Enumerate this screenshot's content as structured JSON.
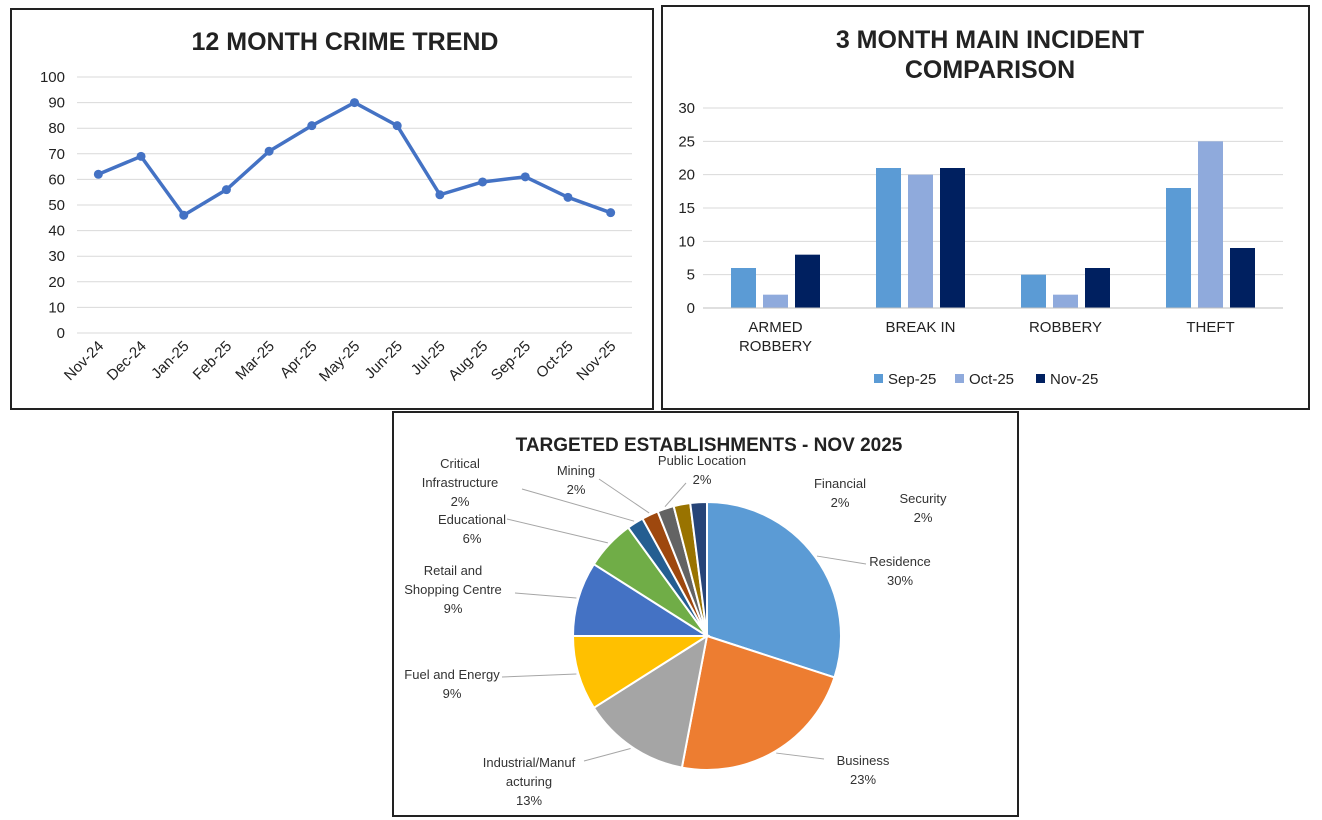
{
  "chart_data": [
    {
      "type": "line",
      "title": "12 MONTH CRIME TREND",
      "categories": [
        "Nov-24",
        "Dec-24",
        "Jan-25",
        "Feb-25",
        "Mar-25",
        "Apr-25",
        "May-25",
        "Jun-25",
        "Jul-25",
        "Aug-25",
        "Sep-25",
        "Oct-25",
        "Nov-25"
      ],
      "values": [
        62,
        69,
        46,
        56,
        71,
        81,
        90,
        81,
        54,
        59,
        61,
        53,
        47
      ],
      "ylim": [
        0,
        100
      ],
      "yticks": [
        "0",
        "10",
        "20",
        "30",
        "40",
        "50",
        "60",
        "70",
        "80",
        "90",
        "100"
      ],
      "grid": true,
      "color": "#4472C4"
    },
    {
      "type": "bar",
      "title_lines": [
        "3 MONTH MAIN INCIDENT",
        "COMPARISON"
      ],
      "categories": [
        [
          "ARMED",
          "ROBBERY"
        ],
        [
          "BREAK IN"
        ],
        [
          "ROBBERY"
        ],
        [
          "THEFT"
        ]
      ],
      "series": [
        {
          "name": "Sep-25",
          "color": "#5B9BD5",
          "values": [
            6,
            21,
            5,
            18
          ]
        },
        {
          "name": "Oct-25",
          "color": "#8FAADC",
          "values": [
            2,
            20,
            2,
            25
          ]
        },
        {
          "name": "Nov-25",
          "color": "#002060",
          "values": [
            8,
            21,
            6,
            9
          ]
        }
      ],
      "ylim": [
        0,
        30
      ],
      "yticks": [
        "0",
        "5",
        "10",
        "15",
        "20",
        "25",
        "30"
      ],
      "grid": true,
      "legend": "bottom"
    },
    {
      "type": "pie",
      "title": "TARGETED ESTABLISHMENTS - NOV 2025",
      "slices": [
        {
          "label": [
            "Residence"
          ],
          "pct": "30%",
          "value": 30,
          "color": "#5B9BD5"
        },
        {
          "label": [
            "Business"
          ],
          "pct": "23%",
          "value": 23,
          "color": "#ED7D31"
        },
        {
          "label": [
            "Industrial/Manuf",
            "acturing"
          ],
          "pct": "13%",
          "value": 13,
          "color": "#A5A5A5"
        },
        {
          "label": [
            "Fuel and Energy"
          ],
          "pct": "9%",
          "value": 9,
          "color": "#FFC000"
        },
        {
          "label": [
            "Retail and",
            "Shopping Centre"
          ],
          "pct": "9%",
          "value": 9,
          "color": "#4472C4"
        },
        {
          "label": [
            "Educational"
          ],
          "pct": "6%",
          "value": 6,
          "color": "#70AD47"
        },
        {
          "label": [
            "Critical",
            "Infrastructure"
          ],
          "pct": "2%",
          "value": 2,
          "color": "#255E91"
        },
        {
          "label": [
            "Mining"
          ],
          "pct": "2%",
          "value": 2,
          "color": "#9E480E"
        },
        {
          "label": [
            "Public Location"
          ],
          "pct": "2%",
          "value": 2,
          "color": "#636363"
        },
        {
          "label": [
            "Financial"
          ],
          "pct": "2%",
          "value": 2,
          "color": "#997300"
        },
        {
          "label": [
            "Security"
          ],
          "pct": "2%",
          "value": 2,
          "color": "#264478"
        }
      ]
    }
  ]
}
